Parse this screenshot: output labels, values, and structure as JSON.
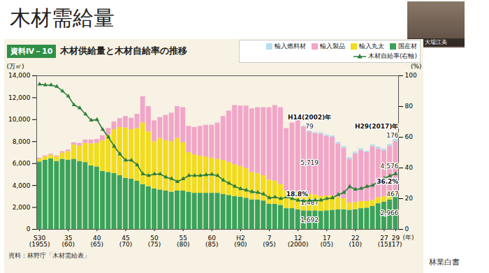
{
  "page": {
    "heading": "木材需給量",
    "presenter": "大場江美",
    "note": "林業白書"
  },
  "chart_data": {
    "type": "bar",
    "title": "木材供給量と木材自給率の推移",
    "subtitle": "資料Ⅳ－10",
    "source": "資料：林野庁「木材需給表」",
    "ylabel": "(万㎥)",
    "y2label": "(%)",
    "xlabel": "(年)",
    "stacked": true,
    "grid": false,
    "legend": "top-right",
    "categories": [
      "S30\n(1955)",
      null,
      null,
      null,
      null,
      "35\n(60)",
      null,
      null,
      null,
      null,
      "40\n(65)",
      null,
      null,
      null,
      null,
      "45\n(70)",
      null,
      null,
      null,
      null,
      "50\n(75)",
      null,
      null,
      null,
      null,
      "55\n(80)",
      null,
      null,
      null,
      null,
      "60\n(85)",
      null,
      null,
      null,
      null,
      "H2\n(90)",
      null,
      null,
      null,
      null,
      "7\n(95)",
      null,
      null,
      null,
      null,
      "12\n(2000)",
      null,
      null,
      null,
      null,
      "17\n(05)",
      null,
      null,
      null,
      null,
      "22\n(10)",
      null,
      null,
      null,
      null,
      "27\n(15)",
      null,
      "29\n(17)"
    ],
    "ylim": [
      0,
      14000
    ],
    "yticks": [
      0,
      {
        "value": 2000,
        "label": "2,000"
      },
      {
        "value": 4000,
        "label": "4,000"
      },
      {
        "value": 6000,
        "label": "6,000"
      },
      {
        "value": 8000,
        "label": "8,000"
      },
      {
        "value": 10000,
        "label": "10,000"
      },
      {
        "value": 12000,
        "label": "12,000"
      },
      {
        "value": 14000,
        "label": "14,000"
      }
    ],
    "y2lim": [
      0,
      100
    ],
    "y2ticks": [
      0,
      20,
      40,
      60,
      80,
      100
    ],
    "series": [
      {
        "name": "国産材",
        "type": "bar",
        "color": "#3aa35a",
        "values": [
          6150,
          6300,
          6450,
          6200,
          6400,
          6300,
          6400,
          6200,
          6100,
          5800,
          5700,
          5300,
          5200,
          5100,
          4900,
          4650,
          4600,
          4400,
          4100,
          3900,
          3700,
          3600,
          3500,
          3400,
          3500,
          3500,
          3400,
          3300,
          3300,
          3300,
          3300,
          3300,
          3200,
          3100,
          3000,
          2950,
          2850,
          2700,
          2700,
          2600,
          2300,
          2300,
          2200,
          1900,
          1900,
          1800,
          1700,
          1692,
          1700,
          1650,
          1700,
          1750,
          1800,
          1800,
          1750,
          1800,
          1900,
          1950,
          2100,
          2350,
          2500,
          2700,
          2966
        ],
        "value_labels": [
          null,
          null,
          null,
          null,
          null,
          null,
          null,
          null,
          null,
          null,
          null,
          null,
          null,
          null,
          null,
          null,
          null,
          null,
          null,
          null,
          null,
          null,
          null,
          null,
          null,
          null,
          null,
          null,
          null,
          null,
          null,
          null,
          null,
          null,
          null,
          null,
          null,
          null,
          null,
          null,
          null,
          null,
          null,
          null,
          null,
          null,
          null,
          "1,692",
          null,
          null,
          null,
          null,
          null,
          null,
          null,
          null,
          null,
          null,
          null,
          null,
          null,
          null,
          "2,966"
        ]
      },
      {
        "name": "輸入丸太",
        "type": "bar",
        "color": "#f2dc1c",
        "values": [
          270,
          300,
          320,
          400,
          550,
          800,
          1300,
          1400,
          1750,
          2000,
          2150,
          2800,
          3400,
          4000,
          4400,
          4600,
          4500,
          4800,
          5600,
          5000,
          4300,
          4700,
          4600,
          4600,
          4800,
          4400,
          3600,
          3500,
          3400,
          3300,
          3200,
          3100,
          3100,
          3000,
          2900,
          2800,
          2700,
          2500,
          2400,
          2300,
          2200,
          2100,
          1900,
          1600,
          1600,
          1600,
          1550,
          1487,
          1450,
          1350,
          1350,
          1300,
          1100,
          1000,
          650,
          650,
          650,
          600,
          550,
          550,
          480,
          480,
          467
        ],
        "value_labels": [
          null,
          null,
          null,
          null,
          null,
          null,
          null,
          null,
          null,
          null,
          null,
          null,
          null,
          null,
          null,
          null,
          null,
          null,
          null,
          null,
          null,
          null,
          null,
          null,
          null,
          null,
          null,
          null,
          null,
          null,
          null,
          null,
          null,
          null,
          null,
          null,
          null,
          null,
          null,
          null,
          null,
          null,
          null,
          null,
          null,
          null,
          null,
          "1,487",
          null,
          null,
          null,
          null,
          null,
          null,
          null,
          null,
          null,
          null,
          null,
          null,
          null,
          null,
          "467"
        ]
      },
      {
        "name": "輸入製品",
        "type": "bar",
        "color": "#f1a6c8",
        "values": [
          80,
          100,
          100,
          100,
          150,
          150,
          200,
          250,
          300,
          350,
          350,
          450,
          600,
          700,
          800,
          1050,
          1050,
          1300,
          2400,
          2300,
          1900,
          1900,
          2300,
          2600,
          2900,
          3200,
          2400,
          2500,
          2700,
          2900,
          3000,
          3300,
          4000,
          4700,
          5400,
          5500,
          5700,
          5800,
          6000,
          6200,
          6600,
          6900,
          7000,
          5700,
          6200,
          6600,
          6100,
          5719,
          5600,
          5700,
          5450,
          5350,
          4900,
          4600,
          4000,
          4450,
          4650,
          4450,
          4900,
          4450,
          4200,
          4400,
          4576
        ],
        "value_labels": [
          null,
          null,
          null,
          null,
          null,
          null,
          null,
          null,
          null,
          null,
          null,
          null,
          null,
          null,
          null,
          null,
          null,
          null,
          null,
          null,
          null,
          null,
          null,
          null,
          null,
          null,
          null,
          null,
          null,
          null,
          null,
          null,
          null,
          null,
          null,
          null,
          null,
          null,
          null,
          null,
          null,
          null,
          null,
          null,
          null,
          null,
          null,
          "5,719",
          null,
          null,
          null,
          null,
          null,
          null,
          null,
          null,
          null,
          null,
          null,
          null,
          null,
          null,
          "4,576"
        ]
      },
      {
        "name": "輸入燃料材",
        "type": "bar",
        "color": "#b3def3",
        "values": [
          null,
          null,
          null,
          null,
          null,
          null,
          null,
          null,
          null,
          null,
          null,
          null,
          null,
          null,
          null,
          null,
          null,
          null,
          null,
          null,
          null,
          null,
          null,
          null,
          null,
          null,
          null,
          null,
          null,
          null,
          null,
          null,
          null,
          null,
          null,
          null,
          null,
          null,
          null,
          null,
          null,
          null,
          null,
          null,
          null,
          30,
          50,
          79,
          90,
          110,
          120,
          130,
          140,
          150,
          150,
          150,
          150,
          130,
          150,
          170,
          160,
          170,
          176
        ],
        "value_labels": [
          null,
          null,
          null,
          null,
          null,
          null,
          null,
          null,
          null,
          null,
          null,
          null,
          null,
          null,
          null,
          null,
          null,
          null,
          null,
          null,
          null,
          null,
          null,
          null,
          null,
          null,
          null,
          null,
          null,
          null,
          null,
          null,
          null,
          null,
          null,
          null,
          null,
          null,
          null,
          null,
          null,
          null,
          null,
          null,
          null,
          null,
          null,
          "79",
          null,
          null,
          null,
          null,
          null,
          null,
          null,
          null,
          null,
          null,
          null,
          null,
          null,
          null,
          "176"
        ]
      },
      {
        "name": "木材自給率(右軸)",
        "type": "line",
        "axis": "y2",
        "color": "#2a7f3a",
        "marker": "triangle",
        "line_style": "solid",
        "values": [
          94.5,
          94,
          94,
          93,
          90,
          86.7,
          81,
          79,
          75,
          71,
          71.4,
          65,
          60,
          54,
          49,
          45,
          45,
          42,
          36,
          35,
          36,
          36,
          34,
          33,
          31,
          32.9,
          35,
          35,
          35,
          35.5,
          35.8,
          35,
          32,
          30,
          28,
          26.4,
          25.5,
          24.5,
          24,
          23,
          20.5,
          21,
          20,
          21,
          20,
          18.9,
          18.4,
          18.8,
          19,
          19,
          20,
          20.5,
          22.6,
          24,
          27.8,
          26,
          26.6,
          27.9,
          28.6,
          31.2,
          33.3,
          34.8,
          36.2
        ],
        "value_labels": [
          null,
          null,
          null,
          null,
          null,
          null,
          null,
          null,
          null,
          null,
          null,
          null,
          null,
          null,
          null,
          null,
          null,
          null,
          null,
          null,
          null,
          null,
          null,
          null,
          null,
          null,
          null,
          null,
          null,
          null,
          null,
          null,
          null,
          null,
          null,
          null,
          null,
          null,
          null,
          null,
          null,
          null,
          null,
          null,
          null,
          null,
          null,
          "18.8%",
          null,
          null,
          null,
          null,
          null,
          null,
          null,
          null,
          null,
          null,
          null,
          null,
          null,
          null,
          "36.2%"
        ]
      }
    ],
    "annotations": [
      {
        "text": "H14(2002)年",
        "series": "輸入燃料材",
        "label": "79"
      },
      {
        "text": "H29(2017)年",
        "series": "輸入燃料材",
        "label": "176"
      }
    ]
  }
}
